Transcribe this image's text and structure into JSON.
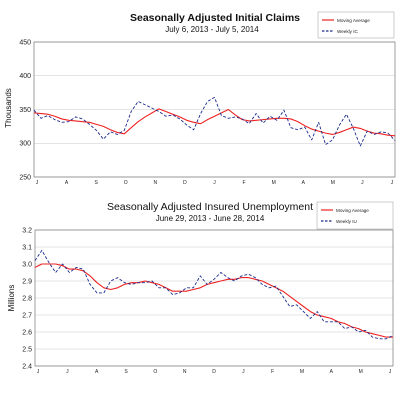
{
  "chart_data": [
    {
      "type": "line",
      "title": "Seasonally Adjusted Initial Claims",
      "subtitle": "July 6, 2013  -  July 5, 2014",
      "ylabel": "Thousands",
      "xlabel": "",
      "ylim": [
        250,
        450
      ],
      "yticks": [
        250,
        300,
        350,
        400,
        450
      ],
      "grid": true,
      "legend": "top-right",
      "x_tick_labels": [
        "J",
        "A",
        "S",
        "O",
        "N",
        "D",
        "J",
        "F",
        "M",
        "A",
        "M",
        "J",
        "J"
      ],
      "x": [
        1,
        2,
        3,
        4,
        5,
        6,
        7,
        8,
        9,
        10,
        11,
        12,
        13,
        14,
        15,
        16,
        17,
        18,
        19,
        20,
        21,
        22,
        23,
        24,
        25,
        26,
        27,
        28,
        29,
        30,
        31,
        32,
        33,
        34,
        35,
        36,
        37,
        38,
        39,
        40,
        41,
        42,
        43,
        44,
        45,
        46,
        47,
        48,
        49,
        50,
        51,
        52,
        53
      ],
      "series": [
        {
          "name": "Moving Average",
          "color": "#ee2222",
          "dash": "solid",
          "values": [
            345,
            344,
            343,
            340,
            336,
            334,
            333,
            332,
            331,
            328,
            325,
            320,
            316,
            314,
            323,
            332,
            339,
            345,
            351,
            347,
            343,
            339,
            334,
            331,
            329,
            335,
            340,
            345,
            350,
            342,
            335,
            333,
            334,
            335,
            336,
            337,
            337,
            336,
            332,
            326,
            321,
            318,
            315,
            313,
            316,
            320,
            324,
            322,
            318,
            315,
            314,
            312,
            311
          ]
        },
        {
          "name": "Weekly IC",
          "color": "#1a2a8c",
          "dash": "dashed",
          "values": [
            349,
            337,
            341,
            335,
            331,
            332,
            339,
            336,
            328,
            319,
            306,
            317,
            313,
            319,
            347,
            362,
            357,
            352,
            347,
            340,
            342,
            336,
            327,
            320,
            344,
            362,
            368,
            341,
            337,
            339,
            336,
            329,
            344,
            330,
            340,
            334,
            349,
            323,
            320,
            324,
            305,
            331,
            298,
            305,
            327,
            343,
            322,
            296,
            318,
            313,
            317,
            315,
            304
          ]
        }
      ]
    },
    {
      "type": "line",
      "title": "Seasonally Adjusted Insured Unemployment",
      "subtitle": "June 29, 2013  -  June 28, 2014",
      "ylabel": "Millions",
      "xlabel": "",
      "ylim": [
        2.4,
        3.2
      ],
      "yticks": [
        2.4,
        2.5,
        2.6,
        2.7,
        2.8,
        2.9,
        3.0,
        3.1,
        3.2
      ],
      "grid": true,
      "legend": "top-right",
      "x_tick_labels": [
        "J",
        "J",
        "A",
        "S",
        "O",
        "N",
        "D",
        "J",
        "F",
        "M",
        "A",
        "M",
        "J"
      ],
      "x": [
        1,
        2,
        3,
        4,
        5,
        6,
        7,
        8,
        9,
        10,
        11,
        12,
        13,
        14,
        15,
        16,
        17,
        18,
        19,
        20,
        21,
        22,
        23,
        24,
        25,
        26,
        27,
        28,
        29,
        30,
        31,
        32,
        33,
        34,
        35,
        36,
        37,
        38,
        39,
        40,
        41,
        42,
        43,
        44,
        45,
        46,
        47,
        48,
        49,
        50,
        51,
        52,
        53
      ],
      "series": [
        {
          "name": "Moving Average",
          "color": "#ee2222",
          "dash": "solid",
          "values": [
            2.98,
            3.0,
            3.0,
            3.0,
            2.99,
            2.97,
            2.97,
            2.96,
            2.93,
            2.89,
            2.86,
            2.85,
            2.86,
            2.88,
            2.89,
            2.89,
            2.9,
            2.89,
            2.88,
            2.86,
            2.84,
            2.84,
            2.84,
            2.85,
            2.86,
            2.88,
            2.89,
            2.9,
            2.91,
            2.91,
            2.92,
            2.92,
            2.91,
            2.9,
            2.88,
            2.86,
            2.84,
            2.81,
            2.78,
            2.75,
            2.72,
            2.7,
            2.69,
            2.68,
            2.66,
            2.65,
            2.63,
            2.62,
            2.6,
            2.59,
            2.58,
            2.57,
            2.57
          ]
        },
        {
          "name": "Weekly IU",
          "color": "#1a2a8c",
          "dash": "dashed",
          "values": [
            3.02,
            3.08,
            3.01,
            2.95,
            3.0,
            2.95,
            2.98,
            2.97,
            2.88,
            2.83,
            2.83,
            2.9,
            2.92,
            2.89,
            2.88,
            2.89,
            2.89,
            2.9,
            2.86,
            2.86,
            2.82,
            2.83,
            2.86,
            2.86,
            2.93,
            2.88,
            2.91,
            2.95,
            2.92,
            2.9,
            2.93,
            2.94,
            2.92,
            2.88,
            2.86,
            2.87,
            2.81,
            2.75,
            2.76,
            2.72,
            2.68,
            2.72,
            2.66,
            2.66,
            2.66,
            2.62,
            2.63,
            2.6,
            2.61,
            2.57,
            2.56,
            2.56,
            2.58
          ]
        }
      ]
    }
  ]
}
